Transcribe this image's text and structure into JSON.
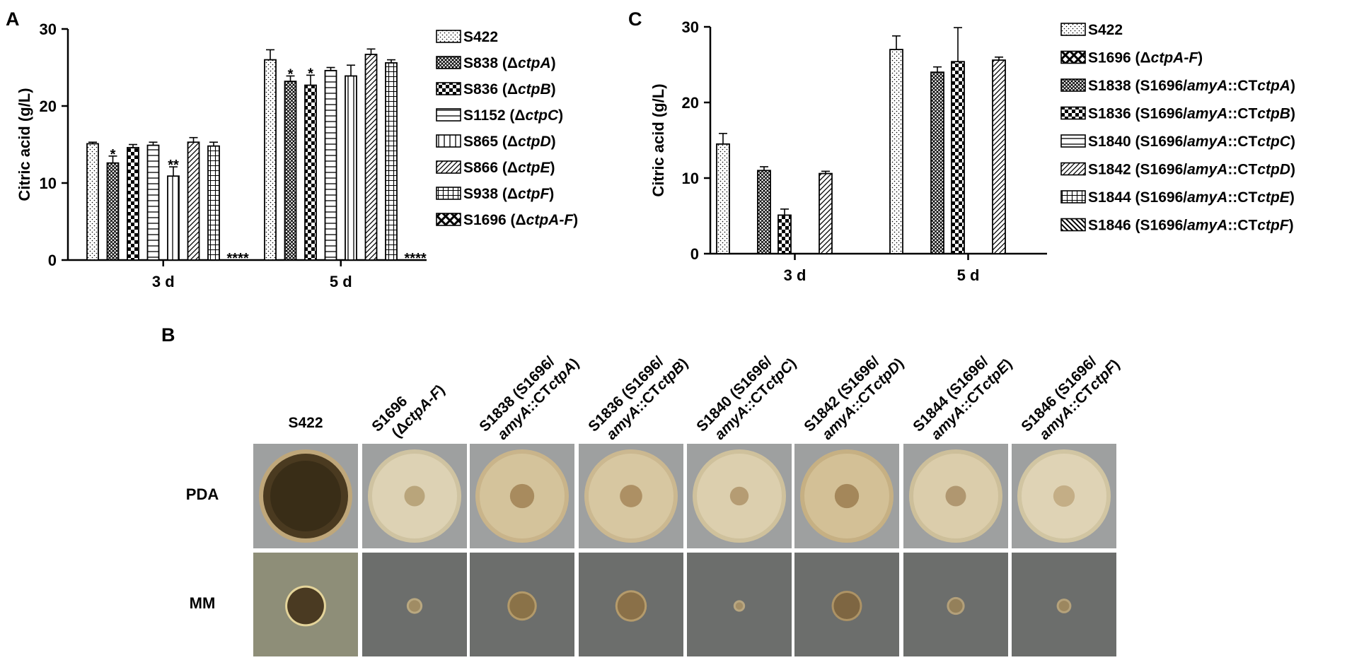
{
  "panel_labels": {
    "a": "A",
    "b": "B",
    "c": "C"
  },
  "chart_data": [
    {
      "id": "A",
      "type": "bar",
      "ylabel": "Citric acid (g/L)",
      "xlabel": "",
      "ylim": [
        0,
        30
      ],
      "yticks": [
        0,
        10,
        20,
        30
      ],
      "categories": [
        "3 d",
        "5 d"
      ],
      "series": [
        {
          "name": "S422",
          "pattern": "dots",
          "values": [
            15.1,
            26.0
          ],
          "err": [
            0.2,
            1.3
          ],
          "sig": [
            "",
            ""
          ]
        },
        {
          "name": "S838 (ΔctpA)",
          "pattern": "crosshatch",
          "values": [
            12.6,
            23.2
          ],
          "err": [
            0.9,
            0.7
          ],
          "sig": [
            "*",
            "*"
          ]
        },
        {
          "name": "S836 (ΔctpB)",
          "pattern": "checker",
          "values": [
            14.6,
            22.7
          ],
          "err": [
            0.4,
            1.3
          ],
          "sig": [
            "",
            "*"
          ]
        },
        {
          "name": "S1152 (ΔctpC)",
          "pattern": "hlines",
          "values": [
            14.9,
            24.6
          ],
          "err": [
            0.4,
            0.4
          ],
          "sig": [
            "",
            ""
          ]
        },
        {
          "name": "S865 (ΔctpD)",
          "pattern": "vlines",
          "values": [
            10.9,
            23.9
          ],
          "err": [
            1.2,
            1.4
          ],
          "sig": [
            "**",
            ""
          ]
        },
        {
          "name": "S866 (ΔctpE)",
          "pattern": "diag",
          "values": [
            15.3,
            26.7
          ],
          "err": [
            0.6,
            0.7
          ],
          "sig": [
            "",
            ""
          ]
        },
        {
          "name": "S938 (ΔctpF)",
          "pattern": "grid",
          "values": [
            14.8,
            25.6
          ],
          "err": [
            0.5,
            0.4
          ],
          "sig": [
            "",
            ""
          ]
        },
        {
          "name": "S1696 (ΔctpA-F)",
          "pattern": "bigcheck",
          "values": [
            0,
            0
          ],
          "err": [
            0,
            0
          ],
          "sig": [
            "****",
            "****"
          ]
        }
      ],
      "legend_rich": [
        [
          {
            "t": "S422"
          }
        ],
        [
          {
            "t": "S838 (Δ"
          },
          {
            "t": "ctpA",
            "i": true
          },
          {
            "t": ")"
          }
        ],
        [
          {
            "t": "S836 (Δ"
          },
          {
            "t": "ctpB",
            "i": true
          },
          {
            "t": ")"
          }
        ],
        [
          {
            "t": "S1152 (Δ"
          },
          {
            "t": "ctpC",
            "i": true
          },
          {
            "t": ")"
          }
        ],
        [
          {
            "t": "S865 (Δ"
          },
          {
            "t": "ctpD",
            "i": true
          },
          {
            "t": ")"
          }
        ],
        [
          {
            "t": "S866 (Δ"
          },
          {
            "t": "ctpE",
            "i": true
          },
          {
            "t": ")"
          }
        ],
        [
          {
            "t": "S938 (Δ"
          },
          {
            "t": "ctpF",
            "i": true
          },
          {
            "t": ")"
          }
        ],
        [
          {
            "t": "S1696 (Δ"
          },
          {
            "t": "ctpA-F",
            "i": true
          },
          {
            "t": ")"
          }
        ]
      ]
    },
    {
      "id": "C",
      "type": "bar",
      "ylabel": "Citric acid (g/L)",
      "xlabel": "",
      "ylim": [
        0,
        30
      ],
      "yticks": [
        0,
        10,
        20,
        30
      ],
      "categories": [
        "3 d",
        "5 d"
      ],
      "series": [
        {
          "name": "S422",
          "pattern": "dots",
          "values": [
            14.5,
            27.0
          ],
          "err": [
            1.4,
            1.8
          ]
        },
        {
          "name": "S1696 (ΔctpA-F)",
          "pattern": "bigcheck",
          "values": [
            0,
            0
          ],
          "err": [
            0,
            0
          ]
        },
        {
          "name": "S1838 (S1696/amyA::CTctpA)",
          "pattern": "crosshatch",
          "values": [
            11.0,
            24.0
          ],
          "err": [
            0.5,
            0.7
          ]
        },
        {
          "name": "S1836 (S1696/amyA::CTctpB)",
          "pattern": "checker",
          "values": [
            5.1,
            25.4
          ],
          "err": [
            0.8,
            4.5
          ]
        },
        {
          "name": "S1840 (S1696/amyA::CTctpC)",
          "pattern": "hlines",
          "values": [
            0,
            0
          ],
          "err": [
            0,
            0
          ]
        },
        {
          "name": "S1842 (S1696/amyA::CTctpD)",
          "pattern": "diag",
          "values": [
            10.6,
            25.6
          ],
          "err": [
            0.3,
            0.4
          ]
        },
        {
          "name": "S1844 (S1696/amyA::CTctpE)",
          "pattern": "grid",
          "values": [
            0,
            0
          ],
          "err": [
            0,
            0
          ]
        },
        {
          "name": "S1846 (S1696/amyA::CTctpF)",
          "pattern": "backdiag",
          "values": [
            0,
            0
          ],
          "err": [
            0,
            0
          ]
        }
      ],
      "legend_rich": [
        [
          {
            "t": "S422"
          }
        ],
        [
          {
            "t": "S1696 (Δ"
          },
          {
            "t": "ctpA-F",
            "i": true
          },
          {
            "t": ")"
          }
        ],
        [
          {
            "t": "S1838 (S1696/"
          },
          {
            "t": "amyA",
            "i": true
          },
          {
            "t": "::CT"
          },
          {
            "t": "ctpA",
            "i": true
          },
          {
            "t": ")"
          }
        ],
        [
          {
            "t": "S1836 (S1696/"
          },
          {
            "t": "amyA",
            "i": true
          },
          {
            "t": "::CT"
          },
          {
            "t": "ctpB",
            "i": true
          },
          {
            "t": ")"
          }
        ],
        [
          {
            "t": "S1840 (S1696/"
          },
          {
            "t": "amyA",
            "i": true
          },
          {
            "t": "::CT"
          },
          {
            "t": "ctpC",
            "i": true
          },
          {
            "t": ")"
          }
        ],
        [
          {
            "t": "S1842 (S1696/"
          },
          {
            "t": "amyA",
            "i": true
          },
          {
            "t": "::CT"
          },
          {
            "t": "ctpD",
            "i": true
          },
          {
            "t": ")"
          }
        ],
        [
          {
            "t": "S1844 (S1696/"
          },
          {
            "t": "amyA",
            "i": true
          },
          {
            "t": "::CT"
          },
          {
            "t": "ctpE",
            "i": true
          },
          {
            "t": ")"
          }
        ],
        [
          {
            "t": "S1846 (S1696/"
          },
          {
            "t": "amyA",
            "i": true
          },
          {
            "t": "::CT"
          },
          {
            "t": "ctpF",
            "i": true
          },
          {
            "t": ")"
          }
        ]
      ]
    }
  ],
  "panel_b": {
    "row_labels": [
      "PDA",
      "MM"
    ],
    "columns": [
      {
        "lines": [
          [
            {
              "t": "S422"
            }
          ]
        ],
        "pda": {
          "body": "#4a3a20",
          "rim": "#bfa77a",
          "center": "#2e2412",
          "cs": 0
        },
        "mm": {
          "size": 0.35,
          "body": "#4a3a22",
          "rim": "#e4d49a"
        }
      },
      {
        "lines": [
          [
            {
              "t": "S1696"
            }
          ],
          [
            {
              "t": "(Δ"
            },
            {
              "t": "ctpA-F",
              "i": true
            },
            {
              "t": ")"
            }
          ]
        ],
        "pda": {
          "body": "#ddd2b4",
          "rim": "#cfc3a1",
          "center": "#b9a57b",
          "cs": 0.22
        },
        "mm": {
          "size": 0.11,
          "body": "#a08c64",
          "rim": "#b9a880"
        }
      },
      {
        "lines": [
          [
            {
              "t": "S1838 (S1696/"
            }
          ],
          [
            {
              "t": "amyA",
              "i": true
            },
            {
              "t": "::CT"
            },
            {
              "t": "ctpA",
              "i": true
            },
            {
              "t": ")"
            }
          ]
        ],
        "pda": {
          "body": "#d4c39b",
          "rim": "#c9b48a",
          "center": "#a88b5e",
          "cs": 0.26
        },
        "mm": {
          "size": 0.24,
          "body": "#8a7248",
          "rim": "#b39a6a"
        }
      },
      {
        "lines": [
          [
            {
              "t": "S1836 (S1696/"
            }
          ],
          [
            {
              "t": "amyA",
              "i": true
            },
            {
              "t": "::CT"
            },
            {
              "t": "ctpB",
              "i": true
            },
            {
              "t": ")"
            }
          ]
        ],
        "pda": {
          "body": "#d7c7a1",
          "rim": "#cbb890",
          "center": "#ad9064",
          "cs": 0.24
        },
        "mm": {
          "size": 0.26,
          "body": "#8a7048",
          "rim": "#b59b6b"
        }
      },
      {
        "lines": [
          [
            {
              "t": "S1840 (S1696/"
            }
          ],
          [
            {
              "t": "amyA",
              "i": true
            },
            {
              "t": "::CT"
            },
            {
              "t": "ctpC",
              "i": true
            },
            {
              "t": ")"
            }
          ]
        ],
        "pda": {
          "body": "#dccfae",
          "rim": "#cfc19c",
          "center": "#b59c73",
          "cs": 0.2
        },
        "mm": {
          "size": 0.07,
          "body": "#a38e67",
          "rim": "#b8a680"
        }
      },
      {
        "lines": [
          [
            {
              "t": "S1842 (S1696/"
            }
          ],
          [
            {
              "t": "amyA",
              "i": true
            },
            {
              "t": "::CT"
            },
            {
              "t": "ctpD",
              "i": true
            },
            {
              "t": ")"
            }
          ]
        ],
        "pda": {
          "body": "#d3c096",
          "rim": "#c6b083",
          "center": "#a4875a",
          "cs": 0.26
        },
        "mm": {
          "size": 0.25,
          "body": "#7e6642",
          "rim": "#ad9365"
        }
      },
      {
        "lines": [
          [
            {
              "t": "S1844 (S1696/"
            }
          ],
          [
            {
              "t": "amyA",
              "i": true
            },
            {
              "t": "::CT"
            },
            {
              "t": "ctpE",
              "i": true
            },
            {
              "t": ")"
            }
          ]
        ],
        "pda": {
          "body": "#dbcdab",
          "rim": "#cdbf9a",
          "center": "#b09770",
          "cs": 0.22
        },
        "mm": {
          "size": 0.13,
          "body": "#94805a",
          "rim": "#b3a07a"
        }
      },
      {
        "lines": [
          [
            {
              "t": "S1846 (S1696/"
            }
          ],
          [
            {
              "t": "amyA",
              "i": true
            },
            {
              "t": "::CT"
            },
            {
              "t": "ctpF",
              "i": true
            },
            {
              "t": ")"
            }
          ]
        ],
        "pda": {
          "body": "#dfd3b5",
          "rim": "#d1c5a2",
          "center": "#c4ae86",
          "cs": 0.23
        },
        "mm": {
          "size": 0.1,
          "body": "#9c875f",
          "rim": "#b5a27b"
        }
      }
    ],
    "pda_background": "#9ea0a0",
    "mm_background": "#6c6e6c",
    "mm_background_first": "#8e8e78"
  }
}
